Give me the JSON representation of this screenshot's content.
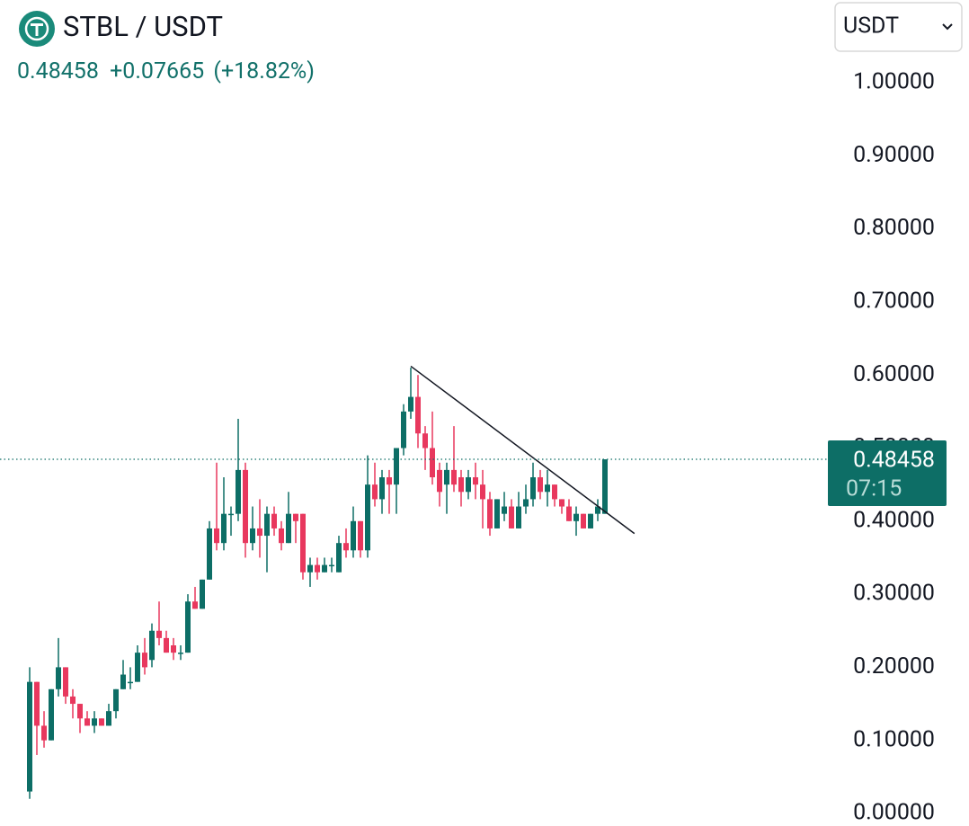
{
  "chart_data": {
    "type": "candlestick",
    "title": "STBL / USDT",
    "quote_selector": "USDT",
    "last_price": 0.48458,
    "change": "+0.07665",
    "change_percent": "(+18.82%)",
    "countdown": "07:15",
    "up_color": "#0d6e66",
    "down_color": "#e8385e",
    "ylim": [
      0,
      1
    ],
    "yticks": [
      {
        "value": 0,
        "label": "0.00000"
      },
      {
        "value": 0.1,
        "label": "0.10000"
      },
      {
        "value": 0.2,
        "label": "0.20000"
      },
      {
        "value": 0.3,
        "label": "0.30000"
      },
      {
        "value": 0.4,
        "label": "0.40000"
      },
      {
        "value": 0.5,
        "label": "0.50000"
      },
      {
        "value": 0.6,
        "label": "0.60000"
      },
      {
        "value": 0.7,
        "label": "0.70000"
      },
      {
        "value": 0.8,
        "label": "0.80000"
      },
      {
        "value": 0.9,
        "label": "0.90000"
      },
      {
        "value": 1,
        "label": "1.00000"
      }
    ],
    "open": [
      0.03,
      0.18,
      0.12,
      0.1,
      0.17,
      0.2,
      0.16,
      0.15,
      0.13,
      0.12,
      0.13,
      0.12,
      0.14,
      0.17,
      0.18,
      0.18,
      0.22,
      0.21,
      0.25,
      0.24,
      0.23,
      0.22,
      0.22,
      0.29,
      0.28,
      0.32,
      0.39,
      0.37,
      0.41,
      0.41,
      0.47,
      0.37,
      0.39,
      0.38,
      0.41,
      0.39,
      0.37,
      0.41,
      0.41,
      0.33,
      0.34,
      0.33,
      0.34,
      0.33,
      0.37,
      0.36,
      0.4,
      0.36,
      0.45,
      0.43,
      0.46,
      0.45,
      0.5,
      0.55,
      0.57,
      0.52,
      0.5,
      0.47,
      0.45,
      0.47,
      0.46,
      0.44,
      0.46,
      0.45,
      0.43,
      0.39,
      0.41,
      0.42,
      0.39,
      0.42,
      0.43,
      0.46,
      0.44,
      0.45,
      0.43,
      0.42,
      0.4,
      0.41,
      0.39,
      0.41,
      0.41
    ],
    "high": [
      0.2,
      0.18,
      0.14,
      0.17,
      0.24,
      0.2,
      0.17,
      0.15,
      0.14,
      0.14,
      0.13,
      0.15,
      0.17,
      0.21,
      0.2,
      0.23,
      0.24,
      0.26,
      0.29,
      0.25,
      0.24,
      0.23,
      0.3,
      0.31,
      0.32,
      0.4,
      0.48,
      0.46,
      0.42,
      0.54,
      0.48,
      0.42,
      0.43,
      0.42,
      0.42,
      0.4,
      0.44,
      0.41,
      0.41,
      0.35,
      0.35,
      0.35,
      0.35,
      0.38,
      0.39,
      0.42,
      0.4,
      0.49,
      0.48,
      0.47,
      0.47,
      0.5,
      0.56,
      0.61,
      0.6,
      0.53,
      0.55,
      0.48,
      0.48,
      0.53,
      0.47,
      0.47,
      0.48,
      0.47,
      0.44,
      0.43,
      0.44,
      0.43,
      0.44,
      0.45,
      0.48,
      0.47,
      0.47,
      0.45,
      0.43,
      0.43,
      0.42,
      0.41,
      0.41,
      0.43,
      0.48458
    ],
    "low": [
      0.02,
      0.08,
      0.09,
      0.1,
      0.16,
      0.15,
      0.13,
      0.11,
      0.12,
      0.11,
      0.12,
      0.12,
      0.13,
      0.17,
      0.17,
      0.18,
      0.19,
      0.2,
      0.23,
      0.22,
      0.21,
      0.21,
      0.22,
      0.28,
      0.28,
      0.32,
      0.36,
      0.36,
      0.38,
      0.4,
      0.35,
      0.36,
      0.35,
      0.33,
      0.38,
      0.36,
      0.37,
      0.37,
      0.32,
      0.31,
      0.32,
      0.33,
      0.33,
      0.33,
      0.35,
      0.35,
      0.35,
      0.35,
      0.42,
      0.41,
      0.41,
      0.41,
      0.49,
      0.54,
      0.5,
      0.47,
      0.45,
      0.42,
      0.41,
      0.44,
      0.42,
      0.43,
      0.43,
      0.39,
      0.38,
      0.39,
      0.4,
      0.39,
      0.39,
      0.41,
      0.42,
      0.43,
      0.42,
      0.42,
      0.41,
      0.4,
      0.38,
      0.39,
      0.39,
      0.4,
      0.41
    ],
    "close": [
      0.18,
      0.12,
      0.1,
      0.17,
      0.2,
      0.16,
      0.15,
      0.13,
      0.12,
      0.13,
      0.12,
      0.14,
      0.17,
      0.19,
      0.18,
      0.22,
      0.2,
      0.25,
      0.24,
      0.22,
      0.22,
      0.22,
      0.29,
      0.28,
      0.32,
      0.39,
      0.37,
      0.41,
      0.41,
      0.47,
      0.37,
      0.39,
      0.38,
      0.41,
      0.39,
      0.37,
      0.41,
      0.4,
      0.33,
      0.34,
      0.33,
      0.34,
      0.34,
      0.37,
      0.36,
      0.4,
      0.36,
      0.45,
      0.43,
      0.46,
      0.45,
      0.5,
      0.55,
      0.57,
      0.52,
      0.5,
      0.46,
      0.44,
      0.47,
      0.45,
      0.44,
      0.46,
      0.45,
      0.43,
      0.39,
      0.43,
      0.42,
      0.39,
      0.42,
      0.43,
      0.46,
      0.44,
      0.45,
      0.43,
      0.42,
      0.4,
      0.41,
      0.39,
      0.41,
      0.42,
      0.48458
    ],
    "trendline": {
      "x": [
        53,
        84.1
      ],
      "y": [
        0.612,
        0.383
      ]
    }
  }
}
